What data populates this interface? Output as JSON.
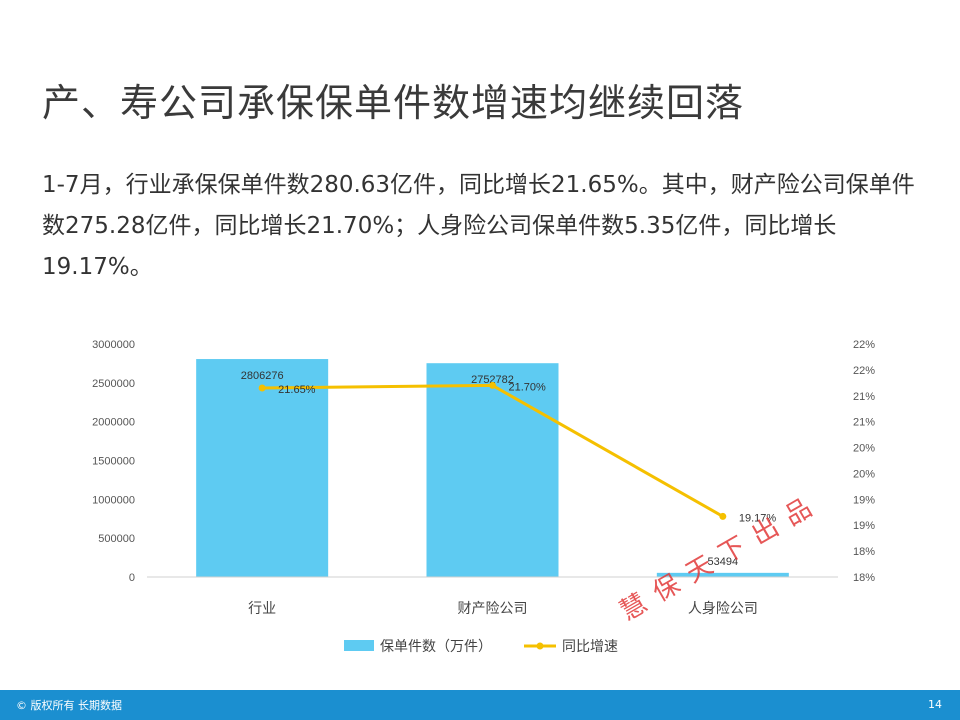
{
  "title": "产、寿公司承保保单件数增速均继续回落",
  "paragraph": "1-7月，行业承保保单件数280.63亿件，同比增长21.65%。其中，财产险公司保单件数275.28亿件，同比增长21.70%；人身险公司保单件数5.35亿件，同比增长19.17%。",
  "chart_data": {
    "type": "bar",
    "categories": [
      "行业",
      "财产险公司",
      "人身险公司"
    ],
    "series": [
      {
        "name": "保单件数（万件）",
        "type": "bar",
        "axis": "left",
        "color": "#5ecbf2",
        "values": [
          2806276,
          2752782,
          53494
        ],
        "labels": [
          "2806276",
          "2752782",
          "53494"
        ]
      },
      {
        "name": "同比增速",
        "type": "line",
        "axis": "right",
        "color": "#f5c000",
        "values": [
          21.65,
          21.7,
          19.17
        ],
        "labels": [
          "21.65%",
          "21.70%",
          "19.17%"
        ]
      }
    ],
    "left_axis": {
      "ticks": [
        "0",
        "500000",
        "1000000",
        "1500000",
        "2000000",
        "2500000",
        "3000000"
      ],
      "ylim": [
        0,
        3000000
      ]
    },
    "right_axis": {
      "ticks": [
        "18%",
        "18%",
        "19%",
        "19%",
        "20%",
        "20%",
        "21%",
        "21%",
        "22%",
        "22%"
      ],
      "ylim": [
        18,
        22.5
      ]
    },
    "legend_position": "bottom",
    "grid": false
  },
  "stamp_text": "慧保天下出品",
  "footer": {
    "copyright": "© 版权所有 长期数据",
    "page": "14"
  }
}
